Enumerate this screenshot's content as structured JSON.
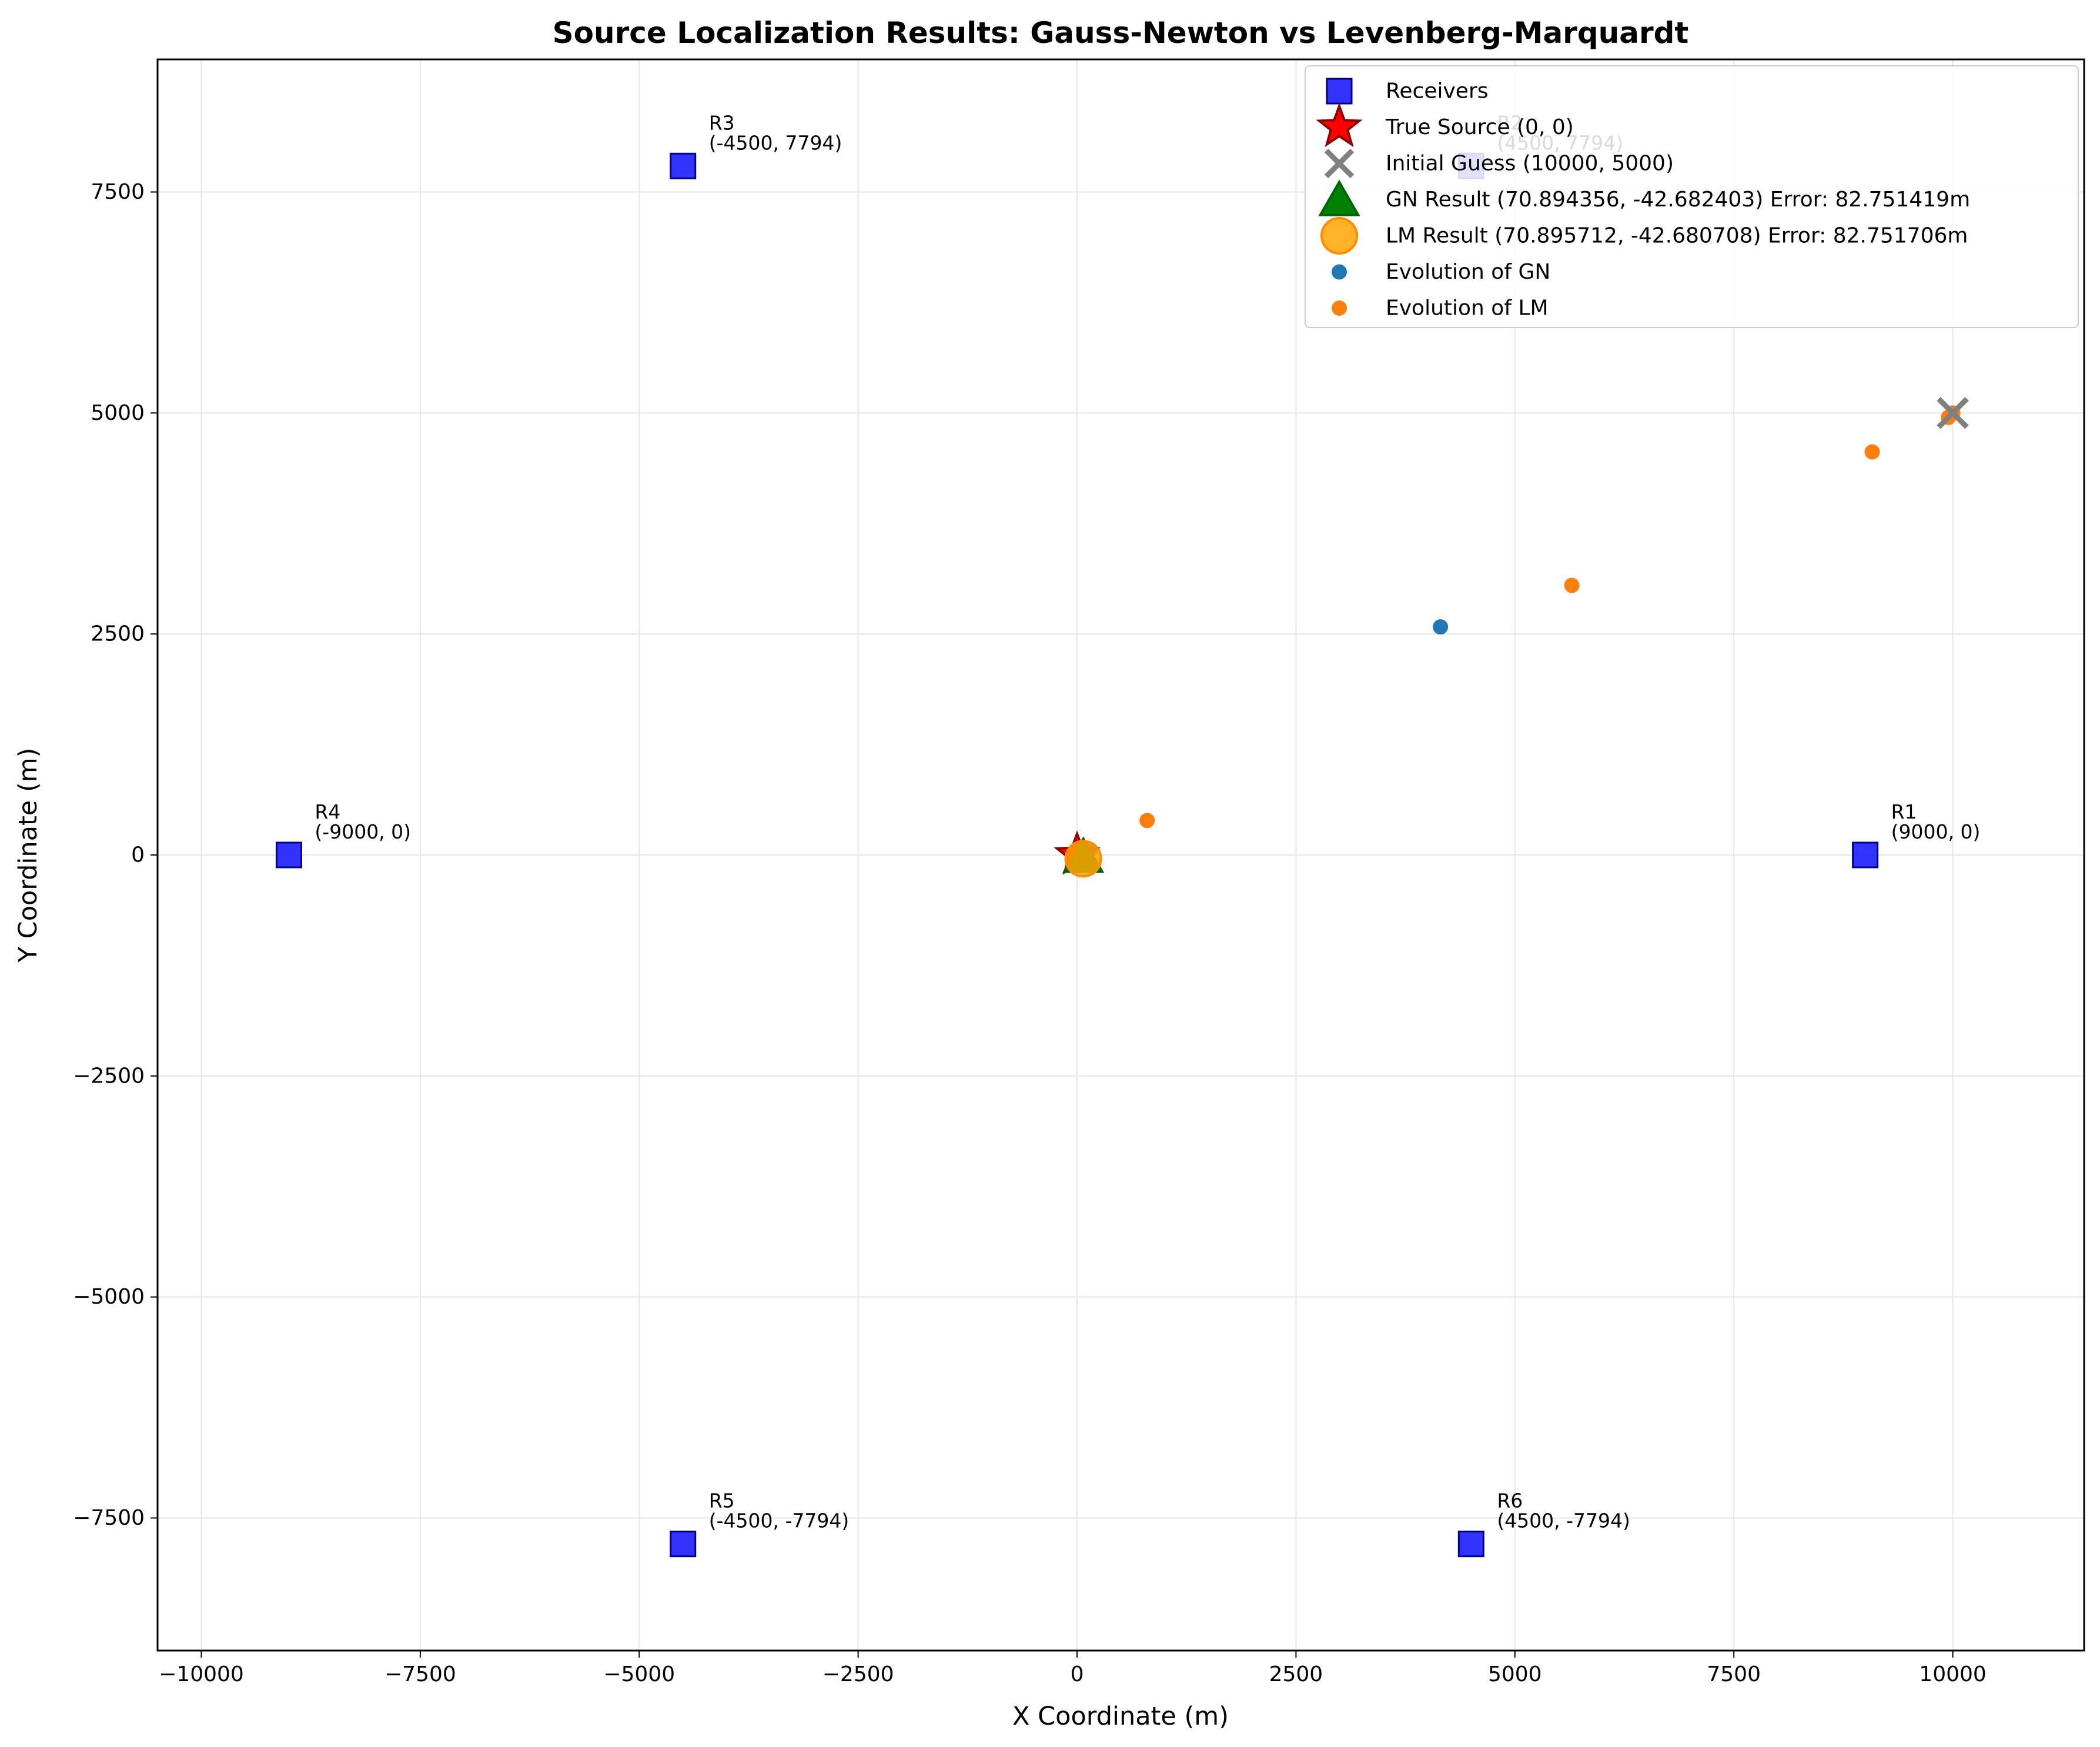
{
  "chart_data": {
    "type": "scatter",
    "title": "Source Localization Results: Gauss-Newton vs Levenberg-Marquardt",
    "xlabel": "X Coordinate (m)",
    "ylabel": "Y Coordinate (m)",
    "xlim": [
      -10500,
      11500
    ],
    "ylim": [
      -9000,
      9000
    ],
    "grid": true,
    "legend_position": "top-right",
    "x_ticks": [
      {
        "value": -10000,
        "label": "−10000"
      },
      {
        "value": -7500,
        "label": "−7500"
      },
      {
        "value": -5000,
        "label": "−5000"
      },
      {
        "value": -2500,
        "label": "−2500"
      },
      {
        "value": 0,
        "label": "0"
      },
      {
        "value": 2500,
        "label": "2500"
      },
      {
        "value": 5000,
        "label": "5000"
      },
      {
        "value": 7500,
        "label": "7500"
      },
      {
        "value": 10000,
        "label": "10000"
      }
    ],
    "y_ticks": [
      {
        "value": -7500,
        "label": "−7500"
      },
      {
        "value": -5000,
        "label": "−5000"
      },
      {
        "value": -2500,
        "label": "−2500"
      },
      {
        "value": 0,
        "label": "0"
      },
      {
        "value": 2500,
        "label": "2500"
      },
      {
        "value": 5000,
        "label": "5000"
      },
      {
        "value": 7500,
        "label": "7500"
      }
    ],
    "receivers": [
      {
        "name": "R1",
        "x": 9000,
        "y": 0,
        "label": "R1",
        "coords": "(9000, 0)"
      },
      {
        "name": "R2",
        "x": 4500,
        "y": 7794,
        "label": "R2",
        "coords": "(4500, 7794)"
      },
      {
        "name": "R3",
        "x": -4500,
        "y": 7794,
        "label": "R3",
        "coords": "(-4500, 7794)"
      },
      {
        "name": "R4",
        "x": -9000,
        "y": 0,
        "label": "R4",
        "coords": "(-9000, 0)"
      },
      {
        "name": "R5",
        "x": -4500,
        "y": -7794,
        "label": "R5",
        "coords": "(-4500, -7794)"
      },
      {
        "name": "R6",
        "x": 4500,
        "y": -7794,
        "label": "R6",
        "coords": "(4500, -7794)"
      }
    ],
    "true_source": {
      "x": 0,
      "y": 0
    },
    "initial_guess": {
      "x": 10000,
      "y": 5000
    },
    "gn_result": {
      "x": 70.894356,
      "y": -42.682403
    },
    "lm_result": {
      "x": 70.895712,
      "y": -42.680708
    },
    "evolution_gn": [
      {
        "x": 10000,
        "y": 5000
      },
      {
        "x": 4150,
        "y": 2580
      },
      {
        "x": 150,
        "y": 60
      },
      {
        "x": 75,
        "y": -40
      },
      {
        "x": 71,
        "y": -43
      }
    ],
    "evolution_lm": [
      {
        "x": 10000,
        "y": 5000
      },
      {
        "x": 9950,
        "y": 4950
      },
      {
        "x": 9080,
        "y": 4560
      },
      {
        "x": 5650,
        "y": 3050
      },
      {
        "x": 800,
        "y": 390
      },
      {
        "x": 90,
        "y": -30
      },
      {
        "x": 71,
        "y": -43
      }
    ],
    "legend": [
      {
        "key": "receivers",
        "label": "Receivers"
      },
      {
        "key": "true",
        "label": "True Source (0, 0)"
      },
      {
        "key": "initial",
        "label": "Initial Guess (10000, 5000)"
      },
      {
        "key": "gn",
        "label": "GN Result (70.894356, -42.682403) Error: 82.751419m"
      },
      {
        "key": "lm",
        "label": "LM Result (70.895712, -42.680708) Error: 82.751706m"
      },
      {
        "key": "evo_gn",
        "label": "Evolution of GN"
      },
      {
        "key": "evo_lm",
        "label": "Evolution of LM"
      }
    ],
    "colors": {
      "receiver": "#0000ff",
      "true_source": "#ff0000",
      "true_source_edge": "#8b0000",
      "initial_guess": "#808080",
      "gn_result": "#008000",
      "gn_result_edge": "#006400",
      "lm_result": "#ffa500",
      "evolution_gn": "#1f77b4",
      "evolution_lm": "#ff7f0e",
      "grid": "#e6e6e6"
    }
  }
}
